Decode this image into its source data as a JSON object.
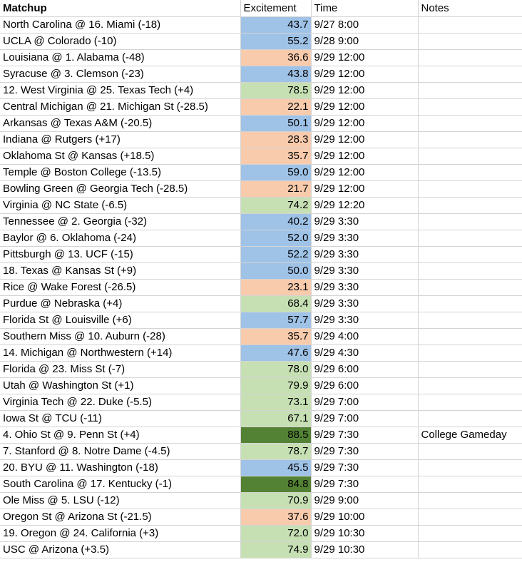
{
  "header": {
    "matchup": "Matchup",
    "excitement": "Excitement",
    "time": "Time",
    "notes": "Notes"
  },
  "colors": {
    "blue": "#9fc2e7",
    "orange": "#f8cbad",
    "lightgreen": "#c6e0b4",
    "darkgreen": "#548235"
  },
  "rows": [
    {
      "matchup": "North Carolina @ 16. Miami (-18)",
      "excitement": "43.7",
      "color": "blue",
      "time": "9/27 8:00",
      "notes": ""
    },
    {
      "matchup": "UCLA @ Colorado (-10)",
      "excitement": "55.2",
      "color": "blue",
      "time": "9/28 9:00",
      "notes": ""
    },
    {
      "matchup": "Louisiana @ 1. Alabama (-48)",
      "excitement": "36.6",
      "color": "orange",
      "time": "9/29 12:00",
      "notes": ""
    },
    {
      "matchup": "Syracuse @ 3. Clemson (-23)",
      "excitement": "43.8",
      "color": "blue",
      "time": "9/29 12:00",
      "notes": ""
    },
    {
      "matchup": "12. West Virginia @ 25. Texas Tech (+4)",
      "excitement": "78.5",
      "color": "lightgreen",
      "time": "9/29 12:00",
      "notes": ""
    },
    {
      "matchup": "Central Michigan @ 21. Michigan St (-28.5)",
      "excitement": "22.1",
      "color": "orange",
      "time": "9/29 12:00",
      "notes": ""
    },
    {
      "matchup": "Arkansas @ Texas A&M (-20.5)",
      "excitement": "50.1",
      "color": "blue",
      "time": "9/29 12:00",
      "notes": ""
    },
    {
      "matchup": "Indiana @ Rutgers (+17)",
      "excitement": "28.3",
      "color": "orange",
      "time": "9/29 12:00",
      "notes": ""
    },
    {
      "matchup": "Oklahoma St @ Kansas (+18.5)",
      "excitement": "35.7",
      "color": "orange",
      "time": "9/29 12:00",
      "notes": ""
    },
    {
      "matchup": "Temple @ Boston College (-13.5)",
      "excitement": "59.0",
      "color": "blue",
      "time": "9/29 12:00",
      "notes": ""
    },
    {
      "matchup": "Bowling Green @ Georgia Tech (-28.5)",
      "excitement": "21.7",
      "color": "orange",
      "time": "9/29 12:00",
      "notes": ""
    },
    {
      "matchup": "Virginia @ NC State (-6.5)",
      "excitement": "74.2",
      "color": "lightgreen",
      "time": "9/29 12:20",
      "notes": ""
    },
    {
      "matchup": "Tennessee @ 2. Georgia (-32)",
      "excitement": "40.2",
      "color": "blue",
      "time": "9/29 3:30",
      "notes": ""
    },
    {
      "matchup": "Baylor @ 6. Oklahoma (-24)",
      "excitement": "52.0",
      "color": "blue",
      "time": "9/29 3:30",
      "notes": ""
    },
    {
      "matchup": "Pittsburgh @ 13. UCF (-15)",
      "excitement": "52.2",
      "color": "blue",
      "time": "9/29 3:30",
      "notes": ""
    },
    {
      "matchup": "18. Texas @ Kansas St (+9)",
      "excitement": "50.0",
      "color": "blue",
      "time": "9/29 3:30",
      "notes": ""
    },
    {
      "matchup": "Rice @ Wake Forest (-26.5)",
      "excitement": "23.1",
      "color": "orange",
      "time": "9/29 3:30",
      "notes": ""
    },
    {
      "matchup": "Purdue @ Nebraska (+4)",
      "excitement": "68.4",
      "color": "lightgreen",
      "time": "9/29 3:30",
      "notes": ""
    },
    {
      "matchup": "Florida St @ Louisville (+6)",
      "excitement": "57.7",
      "color": "blue",
      "time": "9/29 3:30",
      "notes": ""
    },
    {
      "matchup": "Southern Miss @ 10. Auburn (-28)",
      "excitement": "35.7",
      "color": "orange",
      "time": "9/29 4:00",
      "notes": ""
    },
    {
      "matchup": "14. Michigan @ Northwestern (+14)",
      "excitement": "47.6",
      "color": "blue",
      "time": "9/29 4:30",
      "notes": ""
    },
    {
      "matchup": "Florida @ 23. Miss St (-7)",
      "excitement": "78.0",
      "color": "lightgreen",
      "time": "9/29 6:00",
      "notes": ""
    },
    {
      "matchup": "Utah @ Washington St (+1)",
      "excitement": "79.9",
      "color": "lightgreen",
      "time": "9/29 6:00",
      "notes": ""
    },
    {
      "matchup": "Virginia Tech @ 22. Duke (-5.5)",
      "excitement": "73.1",
      "color": "lightgreen",
      "time": "9/29 7:00",
      "notes": ""
    },
    {
      "matchup": "Iowa St @ TCU (-11)",
      "excitement": "67.1",
      "color": "lightgreen",
      "time": "9/29 7:00",
      "notes": ""
    },
    {
      "matchup": "4. Ohio St @ 9. Penn St (+4)",
      "excitement": "88.5",
      "color": "darkgreen",
      "time": "9/29 7:30",
      "notes": "College Gameday"
    },
    {
      "matchup": "7. Stanford @ 8. Notre Dame (-4.5)",
      "excitement": "78.7",
      "color": "lightgreen",
      "time": "9/29 7:30",
      "notes": ""
    },
    {
      "matchup": "20. BYU @ 11. Washington (-18)",
      "excitement": "45.5",
      "color": "blue",
      "time": "9/29 7:30",
      "notes": ""
    },
    {
      "matchup": "South Carolina @ 17. Kentucky (-1)",
      "excitement": "84.8",
      "color": "darkgreen",
      "time": "9/29 7:30",
      "notes": ""
    },
    {
      "matchup": "Ole Miss @ 5. LSU (-12)",
      "excitement": "70.9",
      "color": "lightgreen",
      "time": "9/29 9:00",
      "notes": ""
    },
    {
      "matchup": "Oregon St @ Arizona St (-21.5)",
      "excitement": "37.6",
      "color": "orange",
      "time": "9/29 10:00",
      "notes": ""
    },
    {
      "matchup": "19. Oregon @ 24. California (+3)",
      "excitement": "72.0",
      "color": "lightgreen",
      "time": "9/29 10:30",
      "notes": ""
    },
    {
      "matchup": "USC @ Arizona (+3.5)",
      "excitement": "74.9",
      "color": "lightgreen",
      "time": "9/29 10:30",
      "notes": ""
    }
  ]
}
